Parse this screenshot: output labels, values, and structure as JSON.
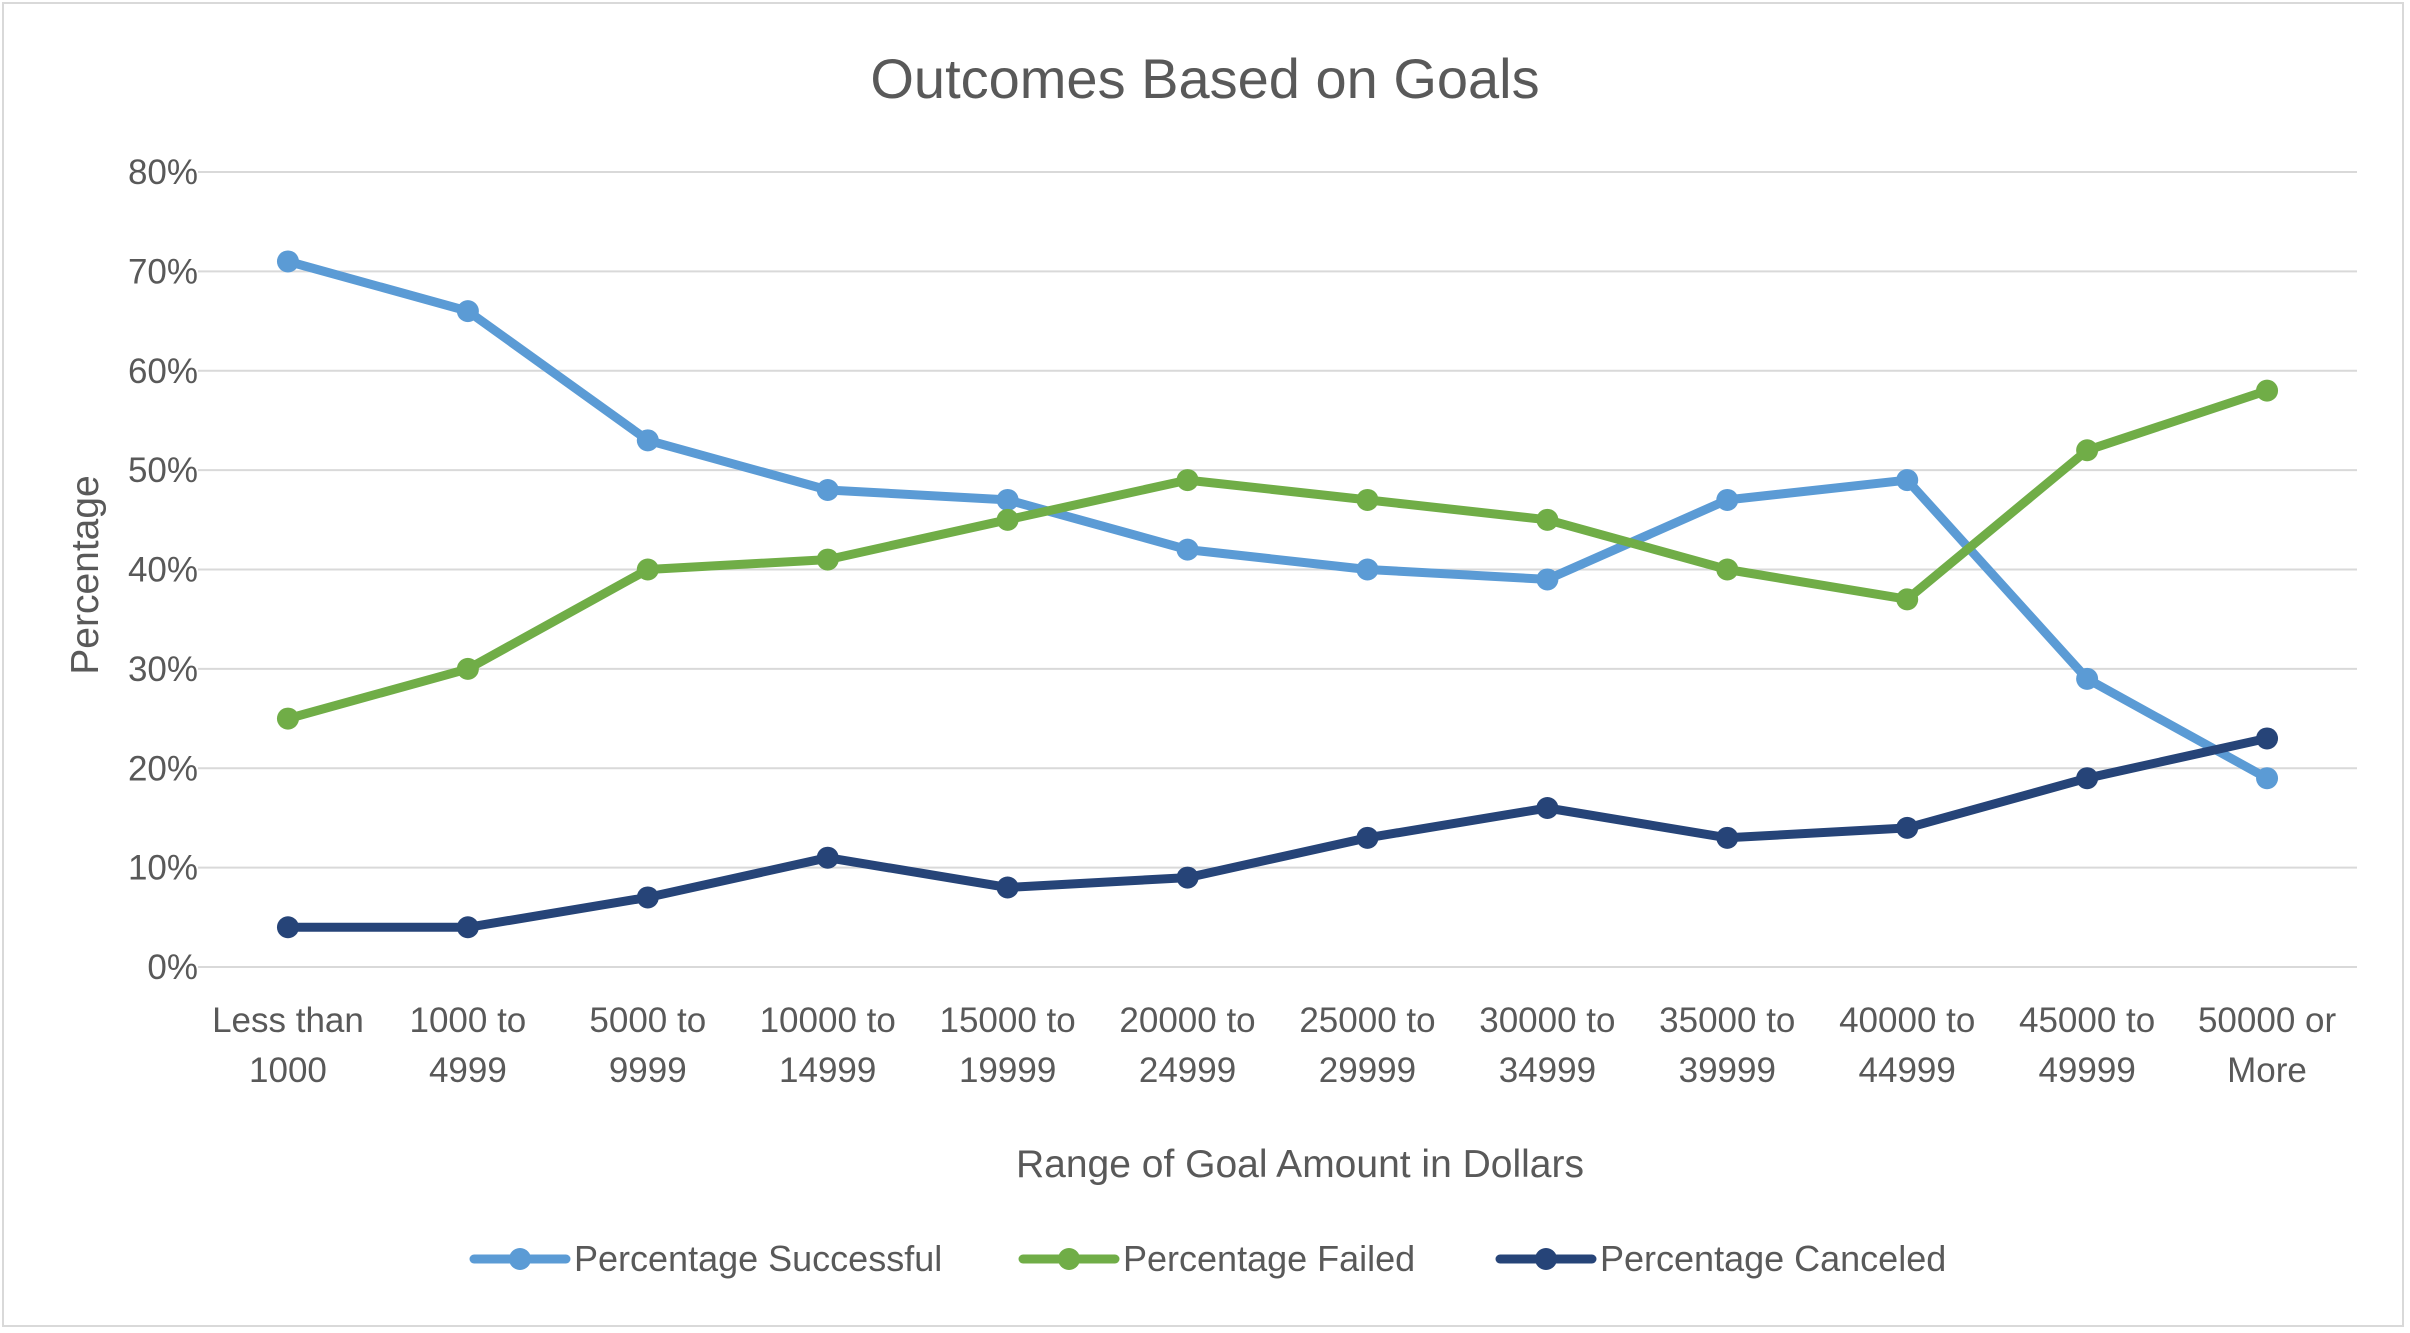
{
  "chart_data": {
    "type": "line",
    "title": "Outcomes Based on Goals",
    "xlabel": "Range of Goal Amount in Dollars",
    "ylabel": "Percentage",
    "ylim": [
      0,
      80
    ],
    "y_ticks": [
      "0%",
      "10%",
      "20%",
      "30%",
      "40%",
      "50%",
      "60%",
      "70%",
      "80%"
    ],
    "grid": "horizontal",
    "legend_position": "bottom",
    "categories": [
      [
        "Less than",
        "1000"
      ],
      [
        "1000 to",
        "4999"
      ],
      [
        "5000 to",
        "9999"
      ],
      [
        "10000 to",
        "14999"
      ],
      [
        "15000 to",
        "19999"
      ],
      [
        "20000 to",
        "24999"
      ],
      [
        "25000 to",
        "29999"
      ],
      [
        "30000 to",
        "34999"
      ],
      [
        "35000 to",
        "39999"
      ],
      [
        "40000 to",
        "44999"
      ],
      [
        "45000 to",
        "49999"
      ],
      [
        "50000 or",
        "More"
      ]
    ],
    "series": [
      {
        "name": "Percentage Successful",
        "color": "#5b9bd5",
        "values": [
          71,
          66,
          53,
          48,
          47,
          42,
          40,
          39,
          47,
          49,
          29,
          19
        ]
      },
      {
        "name": "Percentage Failed",
        "color": "#70ad47",
        "values": [
          25,
          30,
          40,
          41,
          45,
          49,
          47,
          45,
          40,
          37,
          52,
          58
        ]
      },
      {
        "name": "Percentage Canceled",
        "color": "#264478",
        "values": [
          4,
          4,
          7,
          11,
          8,
          9,
          13,
          16,
          13,
          14,
          19,
          23
        ]
      }
    ]
  }
}
